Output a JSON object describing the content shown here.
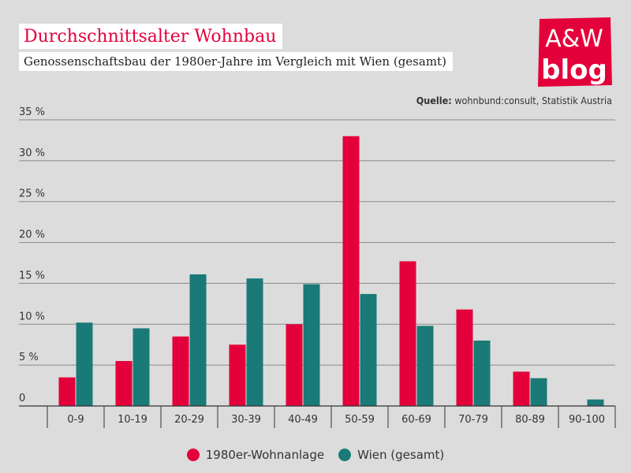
{
  "header": {
    "title": "Durchschnittsalter Wohnbau",
    "subtitle": "Genossenschaftsbau der 1980er-Jahre im Vergleich mit Wien (gesamt)"
  },
  "logo": {
    "line1": "A&W",
    "line2": "blog",
    "color": "#e4003a"
  },
  "source": {
    "label": "Quelle:",
    "text": "wohnbund:consult, Statistik Austria"
  },
  "colors": {
    "series1": "#e4003a",
    "series2": "#1a7a78",
    "background": "#dcdcdc"
  },
  "chart_data": {
    "type": "bar",
    "categories": [
      "0-9",
      "10-19",
      "20-29",
      "30-39",
      "40-49",
      "50-59",
      "60-69",
      "70-79",
      "80-89",
      "90-100"
    ],
    "series": [
      {
        "name": "1980er-Wohnanlage",
        "color": "#e4003a",
        "values": [
          3.5,
          5.5,
          8.5,
          7.5,
          10.0,
          33.0,
          17.7,
          11.8,
          4.2,
          0
        ]
      },
      {
        "name": "Wien (gesamt)",
        "color": "#1a7a78",
        "values": [
          10.2,
          9.5,
          16.1,
          15.6,
          14.9,
          13.7,
          9.8,
          8.0,
          3.4,
          0.8
        ]
      }
    ],
    "ylim": [
      0,
      35
    ],
    "yticks": [
      "0",
      "5 %",
      "10 %",
      "15 %",
      "20 %",
      "25 %",
      "30 %",
      "35 %"
    ],
    "ytick_values": [
      0,
      5,
      10,
      15,
      20,
      25,
      30,
      35
    ],
    "grid": true,
    "legend_position": "bottom-center"
  }
}
